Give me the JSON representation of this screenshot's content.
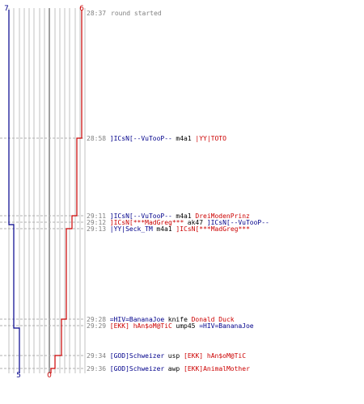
{
  "colors": {
    "blue_team": "#00008b",
    "red_team": "#cc0000",
    "grid": "#c0c0c0",
    "dash": "#b0b0b0",
    "center": "#808080",
    "timestamp": "#808080"
  },
  "scores": {
    "blue_start": "7",
    "blue_end": "5",
    "red_start": "6",
    "red_end": "0"
  },
  "round_start": {
    "time": "28:37",
    "text": "round started"
  },
  "events": [
    {
      "time": "28:58",
      "killer": "]ICsN[--VuTooP--",
      "killer_team": "blue",
      "weapon": "m4a1",
      "victim": "|YY|TOTO",
      "victim_team": "red"
    },
    {
      "time": "29:11",
      "killer": "]ICsN[--VuTooP--",
      "killer_team": "blue",
      "weapon": "m4a1",
      "victim": "DreiModenPrinz",
      "victim_team": "red"
    },
    {
      "time": "29:12",
      "killer": "]ICsN[***MadGreg***",
      "killer_team": "red",
      "weapon": "ak47",
      "victim": "]ICsN[--VuTooP--",
      "victim_team": "blue"
    },
    {
      "time": "29:13",
      "killer": "|YY|Seck_TM",
      "killer_team": "blue",
      "weapon": "m4a1",
      "victim": "]ICsN[***MadGreg***",
      "victim_team": "red"
    },
    {
      "time": "29:28",
      "killer": "=HIV=BananaJoe",
      "killer_team": "blue",
      "weapon": "knife",
      "victim": "Donald Duck",
      "victim_team": "red"
    },
    {
      "time": "29:29",
      "killer": "[EKK] hAn$oM@TiC",
      "killer_team": "red",
      "weapon": "ump45",
      "victim": "=HIV=BananaJoe",
      "victim_team": "blue"
    },
    {
      "time": "29:34",
      "killer": "[GOD]Schweizer",
      "killer_team": "blue",
      "weapon": "usp",
      "victim": "[EKK] hAn$oM@TiC",
      "victim_team": "red"
    },
    {
      "time": "29:36",
      "killer": "[GOD]Schweizer",
      "killer_team": "blue",
      "weapon": "awp",
      "victim": "[EKK]AnimalMother",
      "victim_team": "red"
    }
  ]
}
